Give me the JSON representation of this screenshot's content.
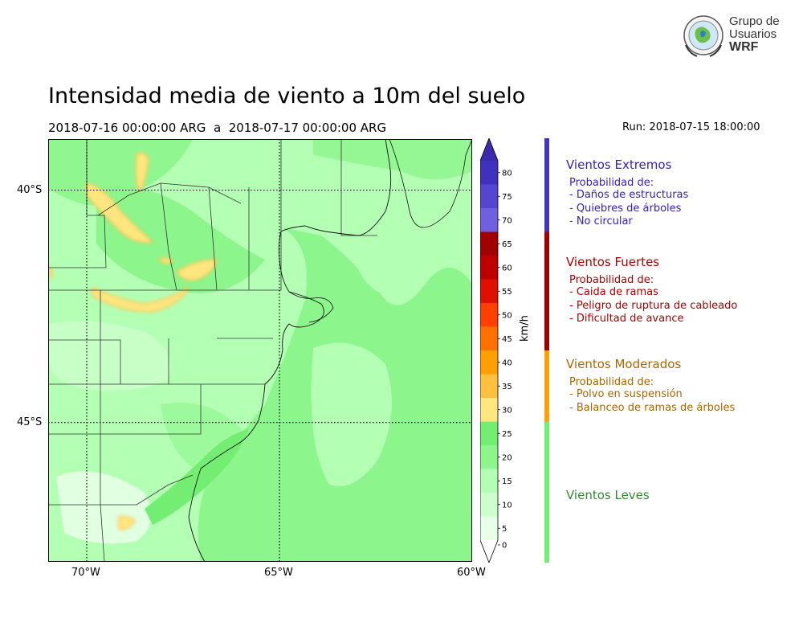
{
  "title": "Intensidad media de viento a 10m del suelo",
  "period": {
    "start": "2018-07-16 00:00:00 ARG",
    "separator": "a",
    "end": "2018-07-17 00:00:00 ARG"
  },
  "run_label": "Run: 2018-07-15 18:00:00",
  "logo": {
    "lines": [
      "Grupo de",
      "Usuarios",
      "WRF"
    ],
    "icon": "globe-emblem-icon"
  },
  "map": {
    "lat_labels": [
      "40°S",
      "45°S"
    ],
    "lon_labels": [
      "70°W",
      "65°W",
      "60°W"
    ],
    "extent": {
      "lon": [
        -71,
        -60
      ],
      "lat": [
        -48.0,
        -38.9
      ]
    }
  },
  "colorbar": {
    "unit": "km/h",
    "ticks": [
      "80",
      "75",
      "70",
      "65",
      "60",
      "55",
      "50",
      "45",
      "40",
      "35",
      "30",
      "25",
      "20",
      "15",
      "10",
      "5",
      "0"
    ],
    "colors": [
      "#e6ffe6",
      "#ccffcc",
      "#b3ffb3",
      "#8cf58c",
      "#73ee73",
      "#ffe680",
      "#ffc040",
      "#ffa000",
      "#ff7000",
      "#ff4000",
      "#e01000",
      "#c00000",
      "#a00000",
      "#7060e0",
      "#5545d0",
      "#4030c0"
    ],
    "min_color": "#ffffff",
    "max_color": "#3b2aad"
  },
  "categories": [
    {
      "title": "Vientos Extremos",
      "color": "#3322bb",
      "bar_color": "#4433bb",
      "prob": "Probabilidad de:",
      "items": [
        "- Daños de estructuras",
        "- Quiebres de árboles",
        "- No circular"
      ],
      "range": [
        65,
        80
      ]
    },
    {
      "title": "Vientos Fuertes",
      "color": "#aa0000",
      "bar_color": "#a00000",
      "prob": "Probabilidad de:",
      "items": [
        "- Caida de ramas",
        "- Peligro de ruptura de cableado",
        "- Dificultad de avance"
      ],
      "range": [
        40,
        65
      ]
    },
    {
      "title": "Vientos Moderados",
      "color": "#aa6600",
      "bar_color": "#ffa000",
      "prob": "Probabilidad de:",
      "items": [
        "- Polvo en suspensión",
        "- Balanceo de ramas de árboles"
      ],
      "range": [
        25,
        40
      ]
    },
    {
      "title": "Vientos Leves",
      "color": "#338833",
      "bar_color": "#73ee73",
      "prob": "",
      "items": [],
      "range": [
        0,
        25
      ]
    }
  ]
}
